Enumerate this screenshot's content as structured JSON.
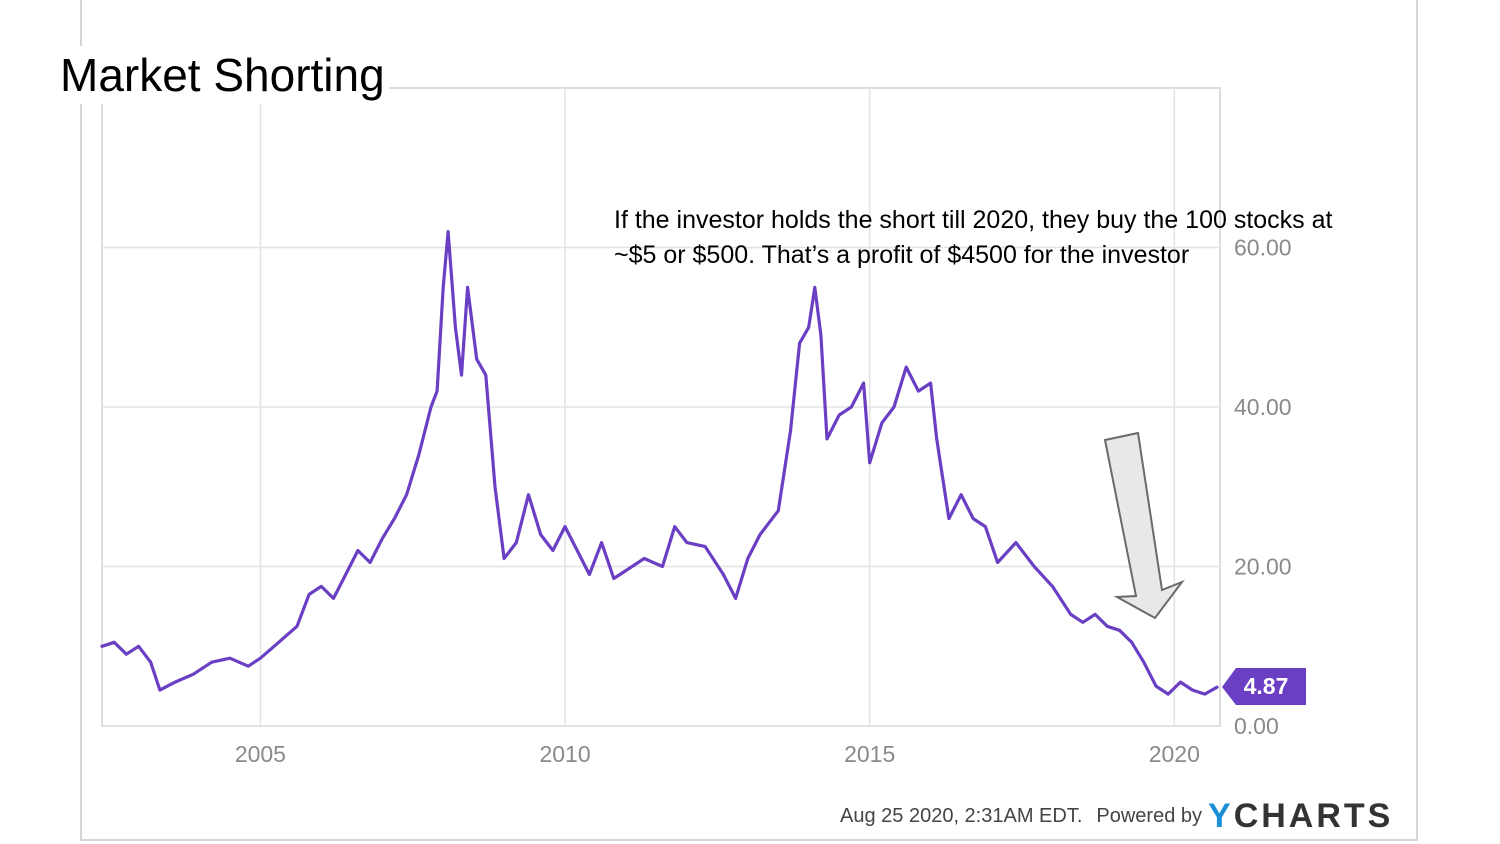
{
  "slide": {
    "title": "Market Shorting",
    "annotation": "If the investor holds the short till 2020, they buy the 100 stocks at ~$5 or $500. That’s a profit of $4500 for the investor"
  },
  "footer": {
    "timestamp": "Aug 25 2020, 2:31AM EDT.",
    "powered_by": "Powered by",
    "brand_y": "Y",
    "brand_rest": "CHARTS"
  },
  "colors": {
    "line": "#6a3fc4",
    "badge": "#6a3fc4",
    "grid": "#e3e3e3",
    "arrow_fill": "#e8e8e8",
    "arrow_stroke": "#6a6a6a"
  },
  "chart_data": {
    "type": "line",
    "title": "",
    "xlabel": "",
    "ylabel": "",
    "xlim": [
      2002.4,
      2020.75
    ],
    "ylim": [
      0,
      80
    ],
    "x_ticks": [
      2005,
      2010,
      2015,
      2020
    ],
    "x_tick_labels": [
      "2005",
      "2010",
      "2015",
      "2020"
    ],
    "y_ticks": [
      0,
      20,
      40,
      60
    ],
    "y_tick_labels": [
      "0.00",
      "20.00",
      "40.00",
      "60.00"
    ],
    "grid": true,
    "last_value_label": "4.87",
    "series": [
      {
        "points": [
          [
            2002.4,
            10.0
          ],
          [
            2002.6,
            10.5
          ],
          [
            2002.8,
            9.0
          ],
          [
            2003.0,
            10.0
          ],
          [
            2003.2,
            8.0
          ],
          [
            2003.35,
            4.5
          ],
          [
            2003.6,
            5.5
          ],
          [
            2003.9,
            6.5
          ],
          [
            2004.2,
            8.0
          ],
          [
            2004.5,
            8.5
          ],
          [
            2004.8,
            7.5
          ],
          [
            2005.0,
            8.5
          ],
          [
            2005.3,
            10.5
          ],
          [
            2005.6,
            12.5
          ],
          [
            2005.8,
            16.5
          ],
          [
            2006.0,
            17.5
          ],
          [
            2006.2,
            16.0
          ],
          [
            2006.4,
            19.0
          ],
          [
            2006.6,
            22.0
          ],
          [
            2006.8,
            20.5
          ],
          [
            2007.0,
            23.5
          ],
          [
            2007.2,
            26.0
          ],
          [
            2007.4,
            29.0
          ],
          [
            2007.6,
            34.0
          ],
          [
            2007.8,
            40.0
          ],
          [
            2007.9,
            42.0
          ],
          [
            2008.0,
            55.0
          ],
          [
            2008.08,
            62.0
          ],
          [
            2008.2,
            50.0
          ],
          [
            2008.3,
            44.0
          ],
          [
            2008.4,
            55.0
          ],
          [
            2008.55,
            46.0
          ],
          [
            2008.7,
            44.0
          ],
          [
            2008.85,
            30.0
          ],
          [
            2009.0,
            21.0
          ],
          [
            2009.2,
            23.0
          ],
          [
            2009.4,
            29.0
          ],
          [
            2009.6,
            24.0
          ],
          [
            2009.8,
            22.0
          ],
          [
            2010.0,
            25.0
          ],
          [
            2010.2,
            22.0
          ],
          [
            2010.4,
            19.0
          ],
          [
            2010.6,
            23.0
          ],
          [
            2010.8,
            18.5
          ],
          [
            2011.0,
            19.5
          ],
          [
            2011.3,
            21.0
          ],
          [
            2011.6,
            20.0
          ],
          [
            2011.8,
            25.0
          ],
          [
            2012.0,
            23.0
          ],
          [
            2012.3,
            22.5
          ],
          [
            2012.6,
            19.0
          ],
          [
            2012.8,
            16.0
          ],
          [
            2013.0,
            21.0
          ],
          [
            2013.2,
            24.0
          ],
          [
            2013.5,
            27.0
          ],
          [
            2013.7,
            37.0
          ],
          [
            2013.85,
            48.0
          ],
          [
            2014.0,
            50.0
          ],
          [
            2014.1,
            55.0
          ],
          [
            2014.2,
            49.0
          ],
          [
            2014.3,
            36.0
          ],
          [
            2014.5,
            39.0
          ],
          [
            2014.7,
            40.0
          ],
          [
            2014.9,
            43.0
          ],
          [
            2015.0,
            33.0
          ],
          [
            2015.2,
            38.0
          ],
          [
            2015.4,
            40.0
          ],
          [
            2015.6,
            45.0
          ],
          [
            2015.8,
            42.0
          ],
          [
            2016.0,
            43.0
          ],
          [
            2016.1,
            36.0
          ],
          [
            2016.3,
            26.0
          ],
          [
            2016.5,
            29.0
          ],
          [
            2016.7,
            26.0
          ],
          [
            2016.9,
            25.0
          ],
          [
            2017.1,
            20.5
          ],
          [
            2017.4,
            23.0
          ],
          [
            2017.7,
            20.0
          ],
          [
            2018.0,
            17.5
          ],
          [
            2018.3,
            14.0
          ],
          [
            2018.5,
            13.0
          ],
          [
            2018.7,
            14.0
          ],
          [
            2018.9,
            12.5
          ],
          [
            2019.1,
            12.0
          ],
          [
            2019.3,
            10.5
          ],
          [
            2019.5,
            8.0
          ],
          [
            2019.7,
            5.0
          ],
          [
            2019.9,
            4.0
          ],
          [
            2020.1,
            5.5
          ],
          [
            2020.3,
            4.5
          ],
          [
            2020.5,
            4.0
          ],
          [
            2020.7,
            4.87
          ]
        ]
      }
    ]
  }
}
